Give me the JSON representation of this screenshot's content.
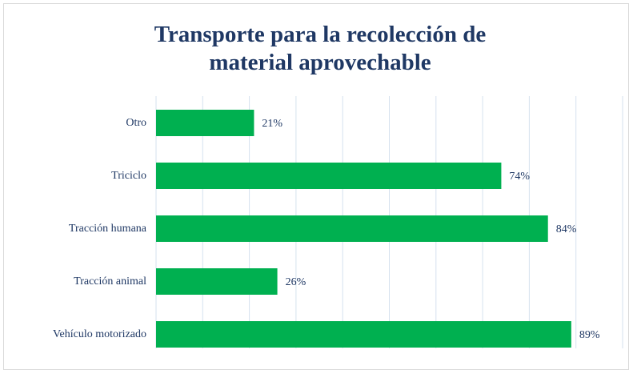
{
  "chart_data": {
    "type": "barh",
    "title": "Transporte para la recolección de material aprovechable",
    "categories": [
      "Otro",
      "Triciclo",
      "Tracción humana",
      "Tracción animal",
      "Vehículo motorizado"
    ],
    "values": [
      21,
      74,
      84,
      26,
      89
    ],
    "value_labels": [
      "21%",
      "74%",
      "84%",
      "26%",
      "89%"
    ],
    "color": "#00b050",
    "xlim": [
      0,
      100
    ],
    "xticks": [
      0,
      10,
      20,
      30,
      40,
      50,
      60,
      70,
      80,
      90,
      100
    ],
    "grid": true
  }
}
